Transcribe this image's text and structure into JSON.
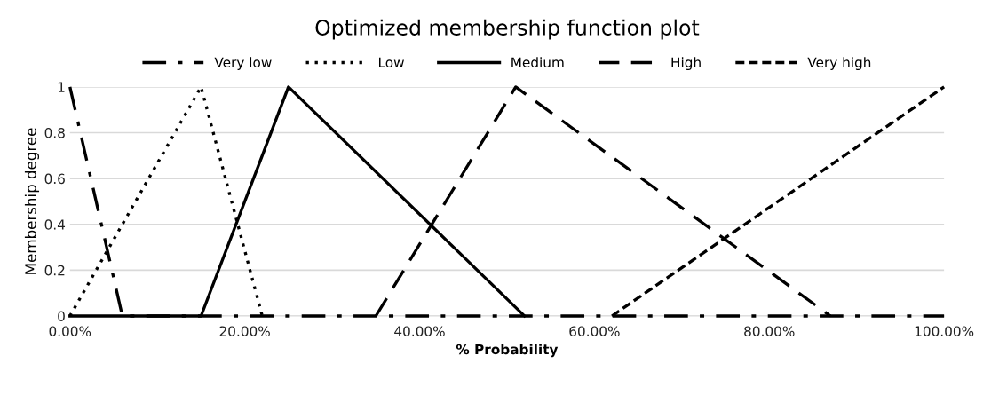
{
  "chart_data": {
    "type": "line",
    "title": "Optimized membership function plot",
    "xlabel": "% Probability",
    "ylabel": "Membership degree",
    "series": [
      {
        "name": "Very low",
        "color": "#000000",
        "line_style": "dashdot",
        "x": [
          0,
          0.06,
          1
        ],
        "values": [
          1,
          0,
          0
        ]
      },
      {
        "name": "Low",
        "color": "#000000",
        "line_style": "dotted",
        "x": [
          0,
          0.15,
          0.22
        ],
        "values": [
          0,
          1,
          0
        ]
      },
      {
        "name": "Medium",
        "color": "#000000",
        "line_style": "solid",
        "x": [
          0,
          0.15,
          0.25,
          0.52
        ],
        "values": [
          0,
          0,
          1,
          0
        ]
      },
      {
        "name": "High",
        "color": "#000000",
        "line_style": "dashed",
        "x": [
          0.35,
          0.51,
          0.87
        ],
        "values": [
          0,
          1,
          0
        ]
      },
      {
        "name": "Very high",
        "color": "#000000",
        "line_style": "shortdash",
        "x": [
          0.62,
          1
        ],
        "values": [
          0,
          1
        ]
      }
    ],
    "xlim": [
      0,
      1
    ],
    "xticks": [
      {
        "value": 0,
        "label": "0.00%"
      },
      {
        "value": 0.2,
        "label": "20.00%"
      },
      {
        "value": 0.4,
        "label": "40.00%"
      },
      {
        "value": 0.6,
        "label": "60.00%"
      },
      {
        "value": 0.8,
        "label": "80.00%"
      },
      {
        "value": 1,
        "label": "100.00%"
      }
    ],
    "ylim": [
      0,
      1
    ],
    "yticks": [
      0,
      0.2,
      0.4,
      0.6,
      0.8,
      1
    ],
    "grid": "y",
    "legend": "top",
    "marker": "none"
  }
}
